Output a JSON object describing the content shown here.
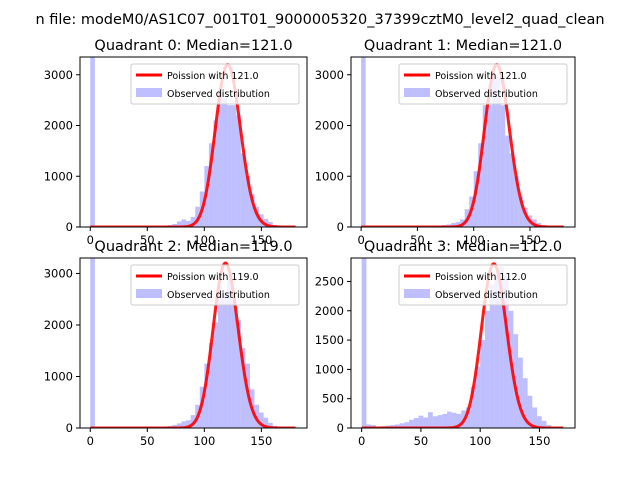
{
  "suptitle": "n file: modeM0/AS1C07_001T01_9000005320_37399cztM0_level2_quad_clean",
  "colors": {
    "poisson": "#ff0000",
    "observed": "#7f7fff",
    "observed_opacity": 0.5
  },
  "chart_data": [
    {
      "type": "bar",
      "title": "Quadrant 0: Median=121.0",
      "legend": [
        "Poission with 121.0",
        "Observed distribution"
      ],
      "legend_position": "upper-right",
      "xlim": [
        -9,
        190
      ],
      "ylim": [
        0,
        3350
      ],
      "xticks": [
        0,
        50,
        100,
        150
      ],
      "yticks": [
        0,
        1000,
        2000,
        3000
      ],
      "poisson_lambda": 121.0,
      "poisson_scale": 3200,
      "poisson_range": [
        0,
        180
      ],
      "bin_width": 4,
      "bins": [
        [
          0,
          3350
        ],
        [
          64,
          30
        ],
        [
          68,
          40
        ],
        [
          72,
          60
        ],
        [
          76,
          110
        ],
        [
          80,
          150
        ],
        [
          84,
          120
        ],
        [
          88,
          200
        ],
        [
          92,
          400
        ],
        [
          96,
          700
        ],
        [
          100,
          1200
        ],
        [
          104,
          1650
        ],
        [
          108,
          2100
        ],
        [
          112,
          2700
        ],
        [
          116,
          2550
        ],
        [
          120,
          2400
        ],
        [
          124,
          2400
        ],
        [
          128,
          2200
        ],
        [
          132,
          1450
        ],
        [
          136,
          1000
        ],
        [
          140,
          650
        ],
        [
          144,
          400
        ],
        [
          148,
          250
        ],
        [
          152,
          160
        ],
        [
          156,
          100
        ],
        [
          160,
          40
        ]
      ]
    },
    {
      "type": "bar",
      "title": "Quadrant 1: Median=121.0",
      "legend": [
        "Poission with 121.0",
        "Observed distribution"
      ],
      "legend_position": "upper-right",
      "xlim": [
        -9,
        190
      ],
      "ylim": [
        0,
        3350
      ],
      "xticks": [
        0,
        50,
        100,
        150
      ],
      "yticks": [
        0,
        1000,
        2000,
        3000
      ],
      "poisson_lambda": 121.0,
      "poisson_scale": 3200,
      "poisson_range": [
        0,
        180
      ],
      "bin_width": 4,
      "bins": [
        [
          0,
          3350
        ],
        [
          64,
          20
        ],
        [
          68,
          30
        ],
        [
          72,
          40
        ],
        [
          76,
          50
        ],
        [
          80,
          80
        ],
        [
          84,
          100
        ],
        [
          88,
          150
        ],
        [
          92,
          350
        ],
        [
          96,
          600
        ],
        [
          100,
          1100
        ],
        [
          104,
          1650
        ],
        [
          108,
          2400
        ],
        [
          112,
          2400
        ],
        [
          116,
          2950
        ],
        [
          120,
          2950
        ],
        [
          124,
          2400
        ],
        [
          128,
          1800
        ],
        [
          132,
          1450
        ],
        [
          136,
          1000
        ],
        [
          140,
          600
        ],
        [
          144,
          380
        ],
        [
          148,
          230
        ],
        [
          152,
          150
        ],
        [
          156,
          80
        ],
        [
          160,
          40
        ]
      ]
    },
    {
      "type": "bar",
      "title": "Quadrant 2: Median=119.0",
      "legend": [
        "Poission with 119.0",
        "Observed distribution"
      ],
      "legend_position": "upper-right",
      "xlim": [
        -9,
        190
      ],
      "ylim": [
        0,
        3300
      ],
      "xticks": [
        0,
        50,
        100,
        150
      ],
      "yticks": [
        0,
        1000,
        2000,
        3000
      ],
      "poisson_lambda": 119.0,
      "poisson_scale": 3200,
      "poisson_range": [
        0,
        180
      ],
      "bin_width": 4,
      "bins": [
        [
          0,
          3300
        ],
        [
          64,
          30
        ],
        [
          68,
          40
        ],
        [
          72,
          60
        ],
        [
          76,
          90
        ],
        [
          80,
          130
        ],
        [
          84,
          150
        ],
        [
          88,
          250
        ],
        [
          92,
          450
        ],
        [
          96,
          800
        ],
        [
          100,
          1250
        ],
        [
          104,
          1650
        ],
        [
          108,
          2050
        ],
        [
          112,
          2750
        ],
        [
          116,
          2600
        ],
        [
          120,
          2900
        ],
        [
          124,
          2500
        ],
        [
          128,
          2100
        ],
        [
          132,
          1550
        ],
        [
          136,
          1250
        ],
        [
          140,
          750
        ],
        [
          144,
          450
        ],
        [
          148,
          300
        ],
        [
          152,
          200
        ],
        [
          156,
          100
        ],
        [
          160,
          40
        ]
      ]
    },
    {
      "type": "bar",
      "title": "Quadrant 3: Median=112.0",
      "legend": [
        "Poission with 112.0",
        "Observed distribution"
      ],
      "legend_position": "upper-right",
      "xlim": [
        -9,
        180
      ],
      "ylim": [
        0,
        2900
      ],
      "xticks": [
        0,
        50,
        100,
        150
      ],
      "yticks": [
        0,
        500,
        1000,
        1500,
        2000,
        2500
      ],
      "poisson_lambda": 112.0,
      "poisson_scale": 2800,
      "poisson_range": [
        0,
        170
      ],
      "bin_width": 4,
      "bins": [
        [
          0,
          2900
        ],
        [
          4,
          60
        ],
        [
          8,
          50
        ],
        [
          16,
          30
        ],
        [
          20,
          40
        ],
        [
          24,
          50
        ],
        [
          28,
          60
        ],
        [
          32,
          80
        ],
        [
          36,
          100
        ],
        [
          40,
          140
        ],
        [
          44,
          170
        ],
        [
          48,
          210
        ],
        [
          52,
          180
        ],
        [
          56,
          270
        ],
        [
          60,
          200
        ],
        [
          64,
          220
        ],
        [
          68,
          240
        ],
        [
          72,
          280
        ],
        [
          76,
          260
        ],
        [
          80,
          240
        ],
        [
          84,
          300
        ],
        [
          88,
          350
        ],
        [
          92,
          700
        ],
        [
          96,
          1050
        ],
        [
          100,
          1500
        ],
        [
          104,
          2000
        ],
        [
          108,
          2450
        ],
        [
          112,
          2650
        ],
        [
          116,
          2750
        ],
        [
          120,
          2600
        ],
        [
          124,
          2000
        ],
        [
          128,
          1600
        ],
        [
          132,
          1200
        ],
        [
          136,
          850
        ],
        [
          140,
          550
        ],
        [
          144,
          350
        ],
        [
          148,
          200
        ],
        [
          152,
          120
        ],
        [
          156,
          50
        ]
      ]
    }
  ]
}
